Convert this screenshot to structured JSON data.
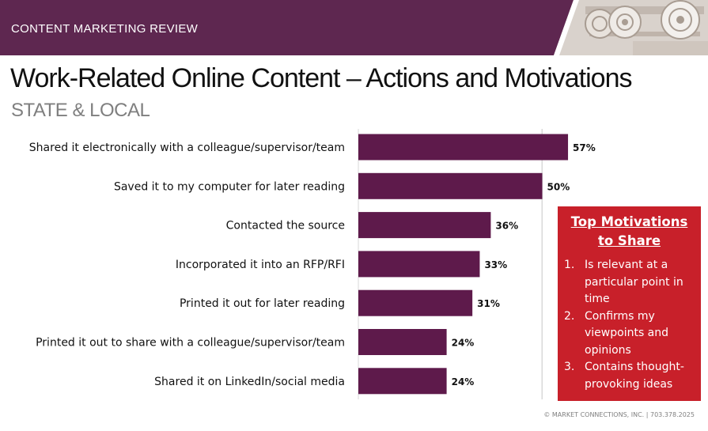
{
  "header": {
    "label": "CONTENT MARKETING REVIEW"
  },
  "title": "Work-Related Online Content – Actions and Motivations",
  "subtitle": "STATE & LOCAL",
  "colors": {
    "band": "#5e2750",
    "bar": "#5e1a4b",
    "callout": "#c8202a",
    "grid": "#d9d9d9"
  },
  "chart_data": {
    "type": "bar",
    "orientation": "horizontal",
    "categories": [
      "Shared it electronically with a colleague/supervisor/team",
      "Saved it to my computer for later reading",
      "Contacted the source",
      "Incorporated it into an RFP/RFI",
      "Printed it out for later reading",
      "Printed it out to share with a colleague/supervisor/team",
      "Shared it on LinkedIn/social media"
    ],
    "values": [
      57,
      50,
      36,
      33,
      31,
      24,
      24
    ],
    "value_labels": [
      "57%",
      "50%",
      "36%",
      "33%",
      "31%",
      "24%",
      "24%"
    ],
    "xlim": [
      0,
      100
    ],
    "grid": true
  },
  "callout": {
    "title": "Top Motivations to Share",
    "items": [
      {
        "num": "1.",
        "text": "Is relevant at a particular point in time"
      },
      {
        "num": "2.",
        "text": "Confirms my viewpoints and opinions"
      },
      {
        "num": "3.",
        "text": "Contains thought-provoking ideas"
      }
    ]
  },
  "footer": "© MARKET CONNECTIONS, INC.  |  703.378.2025"
}
